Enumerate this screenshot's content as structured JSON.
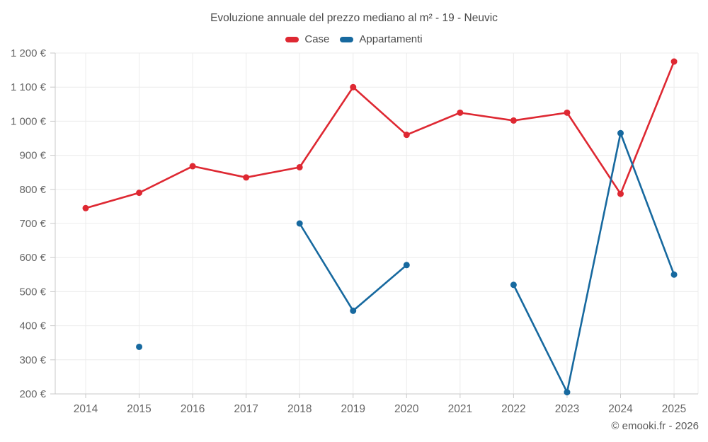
{
  "chart_data": {
    "type": "line",
    "title": "Evoluzione annuale del prezzo mediano al m² - 19 - Neuvic",
    "categories": [
      "2014",
      "2015",
      "2016",
      "2017",
      "2018",
      "2019",
      "2020",
      "2021",
      "2022",
      "2023",
      "2024",
      "2025"
    ],
    "series": [
      {
        "name": "Case",
        "color": "#de2832",
        "values": [
          745,
          790,
          868,
          835,
          865,
          1100,
          960,
          1025,
          1002,
          1025,
          787,
          1175
        ]
      },
      {
        "name": "Appartamenti",
        "color": "#17699f",
        "values": [
          null,
          338,
          null,
          null,
          700,
          444,
          578,
          null,
          520,
          205,
          965,
          550
        ]
      }
    ],
    "xlabel": "",
    "ylabel": "",
    "y_unit": "€",
    "ylim": [
      200,
      1200
    ],
    "ytick_step": 100,
    "grid": true,
    "legend_position": "top",
    "text_color": "#666666",
    "grid_color": "#ececec",
    "axis_color": "#c9c9c9"
  },
  "footer": {
    "copyright": "© emooki.fr - 2026"
  }
}
